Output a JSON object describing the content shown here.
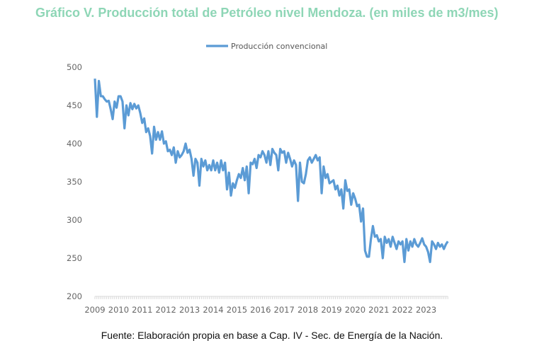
{
  "chart_data": {
    "type": "line",
    "title": "Gráfico V. Producción total de Petróleo nivel Mendoza. (en miles de m3/mes)",
    "source": "Fuente: Elaboración propia en base a Cap. IV -  Sec. de Energía de la Nación.",
    "xlabel": "",
    "ylabel": "",
    "ylim": [
      200,
      500
    ],
    "yticks": [
      "200",
      "250",
      "300",
      "350",
      "400",
      "450",
      "500"
    ],
    "xticks": [
      "2009",
      "2010",
      "2011",
      "2012",
      "2013",
      "2014",
      "2015",
      "2016",
      "2017",
      "2018",
      "2019",
      "2020",
      "2021",
      "2022",
      "2023"
    ],
    "x_start": "2009-01",
    "x_frequency": "monthly",
    "grid": false,
    "legend": "top",
    "color": "#5b9bd5",
    "series": [
      {
        "name": "Producción convencional",
        "values": [
          485,
          435,
          482,
          462,
          462,
          458,
          455,
          456,
          445,
          432,
          455,
          447,
          462,
          462,
          455,
          420,
          450,
          437,
          453,
          445,
          452,
          446,
          450,
          440,
          427,
          433,
          415,
          420,
          410,
          387,
          422,
          405,
          415,
          405,
          416,
          400,
          403,
          390,
          392,
          385,
          395,
          375,
          390,
          382,
          385,
          390,
          400,
          388,
          392,
          380,
          358,
          380,
          375,
          345,
          380,
          370,
          378,
          365,
          372,
          365,
          378,
          365,
          375,
          362,
          378,
          365,
          375,
          340,
          362,
          332,
          348,
          342,
          352,
          360,
          355,
          368,
          352,
          370,
          335,
          375,
          373,
          380,
          368,
          385,
          382,
          390,
          385,
          375,
          390,
          372,
          393,
          388,
          385,
          365,
          393,
          388,
          390,
          375,
          388,
          380,
          370,
          378,
          372,
          325,
          375,
          350,
          348,
          360,
          378,
          382,
          375,
          380,
          385,
          378,
          382,
          335,
          370,
          355,
          360,
          348,
          350,
          352,
          340,
          345,
          332,
          340,
          315,
          352,
          338,
          340,
          320,
          335,
          328,
          318,
          320,
          298,
          315,
          260,
          252,
          252,
          275,
          292,
          278,
          280,
          272,
          275,
          250,
          278,
          270,
          275,
          265,
          278,
          270,
          262,
          272,
          268,
          272,
          245,
          275,
          260,
          272,
          265,
          275,
          268,
          265,
          270,
          276,
          268,
          265,
          258,
          245,
          272,
          268,
          262,
          270,
          265,
          268,
          262,
          268,
          272
        ]
      }
    ]
  }
}
